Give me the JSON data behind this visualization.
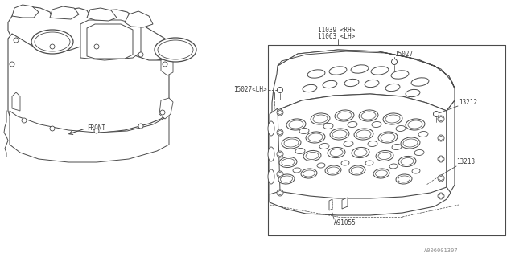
{
  "bg_color": "#ffffff",
  "line_color": "#4a4a4a",
  "text_color": "#3a3a3a",
  "watermark": "A006001307",
  "labels": {
    "part1a": "11039 <RH>",
    "part1b": "11063 <LH>",
    "part2": "15027",
    "part2b": "15027<LH>",
    "part3": "13212",
    "part4": "13213",
    "part5": "A91055",
    "front": "FRONT"
  },
  "figsize": [
    6.4,
    3.2
  ],
  "dpi": 100
}
